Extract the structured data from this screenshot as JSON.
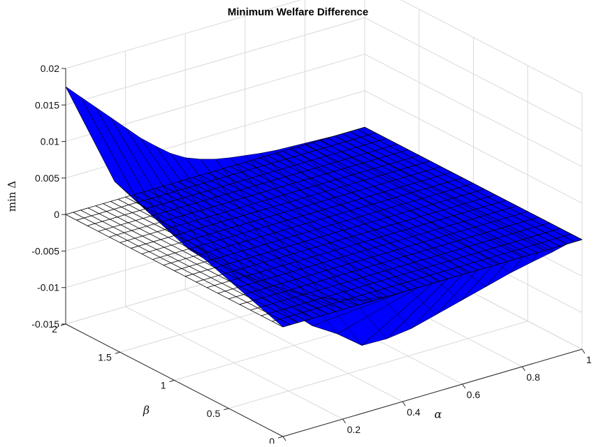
{
  "chart_data": {
    "type": "surface",
    "title": "Minimum Welfare Difference",
    "xlabel": "α",
    "ylabel": "β",
    "zlabel": "min Δ",
    "xlim": [
      0,
      1
    ],
    "ylim": [
      0,
      2
    ],
    "zlim": [
      -0.015,
      0.02
    ],
    "x_ticks": [
      "0",
      "0.2",
      "0.4",
      "0.6",
      "0.8",
      "1"
    ],
    "y_ticks": [
      "0",
      "0.5",
      "1",
      "1.5",
      "2"
    ],
    "z_ticks": [
      "-0.015",
      "-0.01",
      "-0.005",
      "0",
      "0.005",
      "0.01",
      "0.015",
      "0.02"
    ],
    "grid": true,
    "reference_plane": {
      "z": 0,
      "color": "#ffffff",
      "edge_color": "#000000"
    },
    "surface_color": "#0000ff",
    "surface": {
      "alpha": [
        0.0,
        0.05,
        0.1,
        0.15,
        0.2,
        0.25,
        0.3,
        0.35,
        0.4,
        0.45,
        0.5,
        0.55,
        0.6,
        0.65,
        0.7,
        0.75,
        0.8,
        0.85,
        0.9,
        0.95,
        1.0
      ],
      "beta_at_min": [
        1.55,
        1.46,
        1.37,
        1.28,
        1.19,
        1.1,
        1.01,
        0.92,
        0.83,
        0.74,
        0.65,
        0.56,
        0.47,
        0.38,
        0.29,
        0.2,
        0.11,
        0.04,
        0.0,
        0.0,
        0.0
      ],
      "min_delta": [
        0.008,
        0.005,
        0.002,
        -0.001,
        -0.003,
        -0.005,
        -0.007,
        -0.009,
        -0.011,
        -0.012,
        -0.0135,
        -0.0125,
        -0.011,
        -0.009,
        -0.007,
        -0.005,
        -0.003,
        -0.0015,
        -0.0005,
        0.0,
        0.0
      ],
      "edge_beta2": [
        0.0175,
        0.0155,
        0.0135,
        0.0115,
        0.0095,
        0.0075,
        0.0058,
        0.0042,
        0.003,
        0.0022,
        0.0016,
        0.0012,
        0.0009,
        0.0006,
        0.0004,
        0.0003,
        0.0002,
        0.0001,
        0.0,
        0.0,
        0.0
      ]
    }
  }
}
